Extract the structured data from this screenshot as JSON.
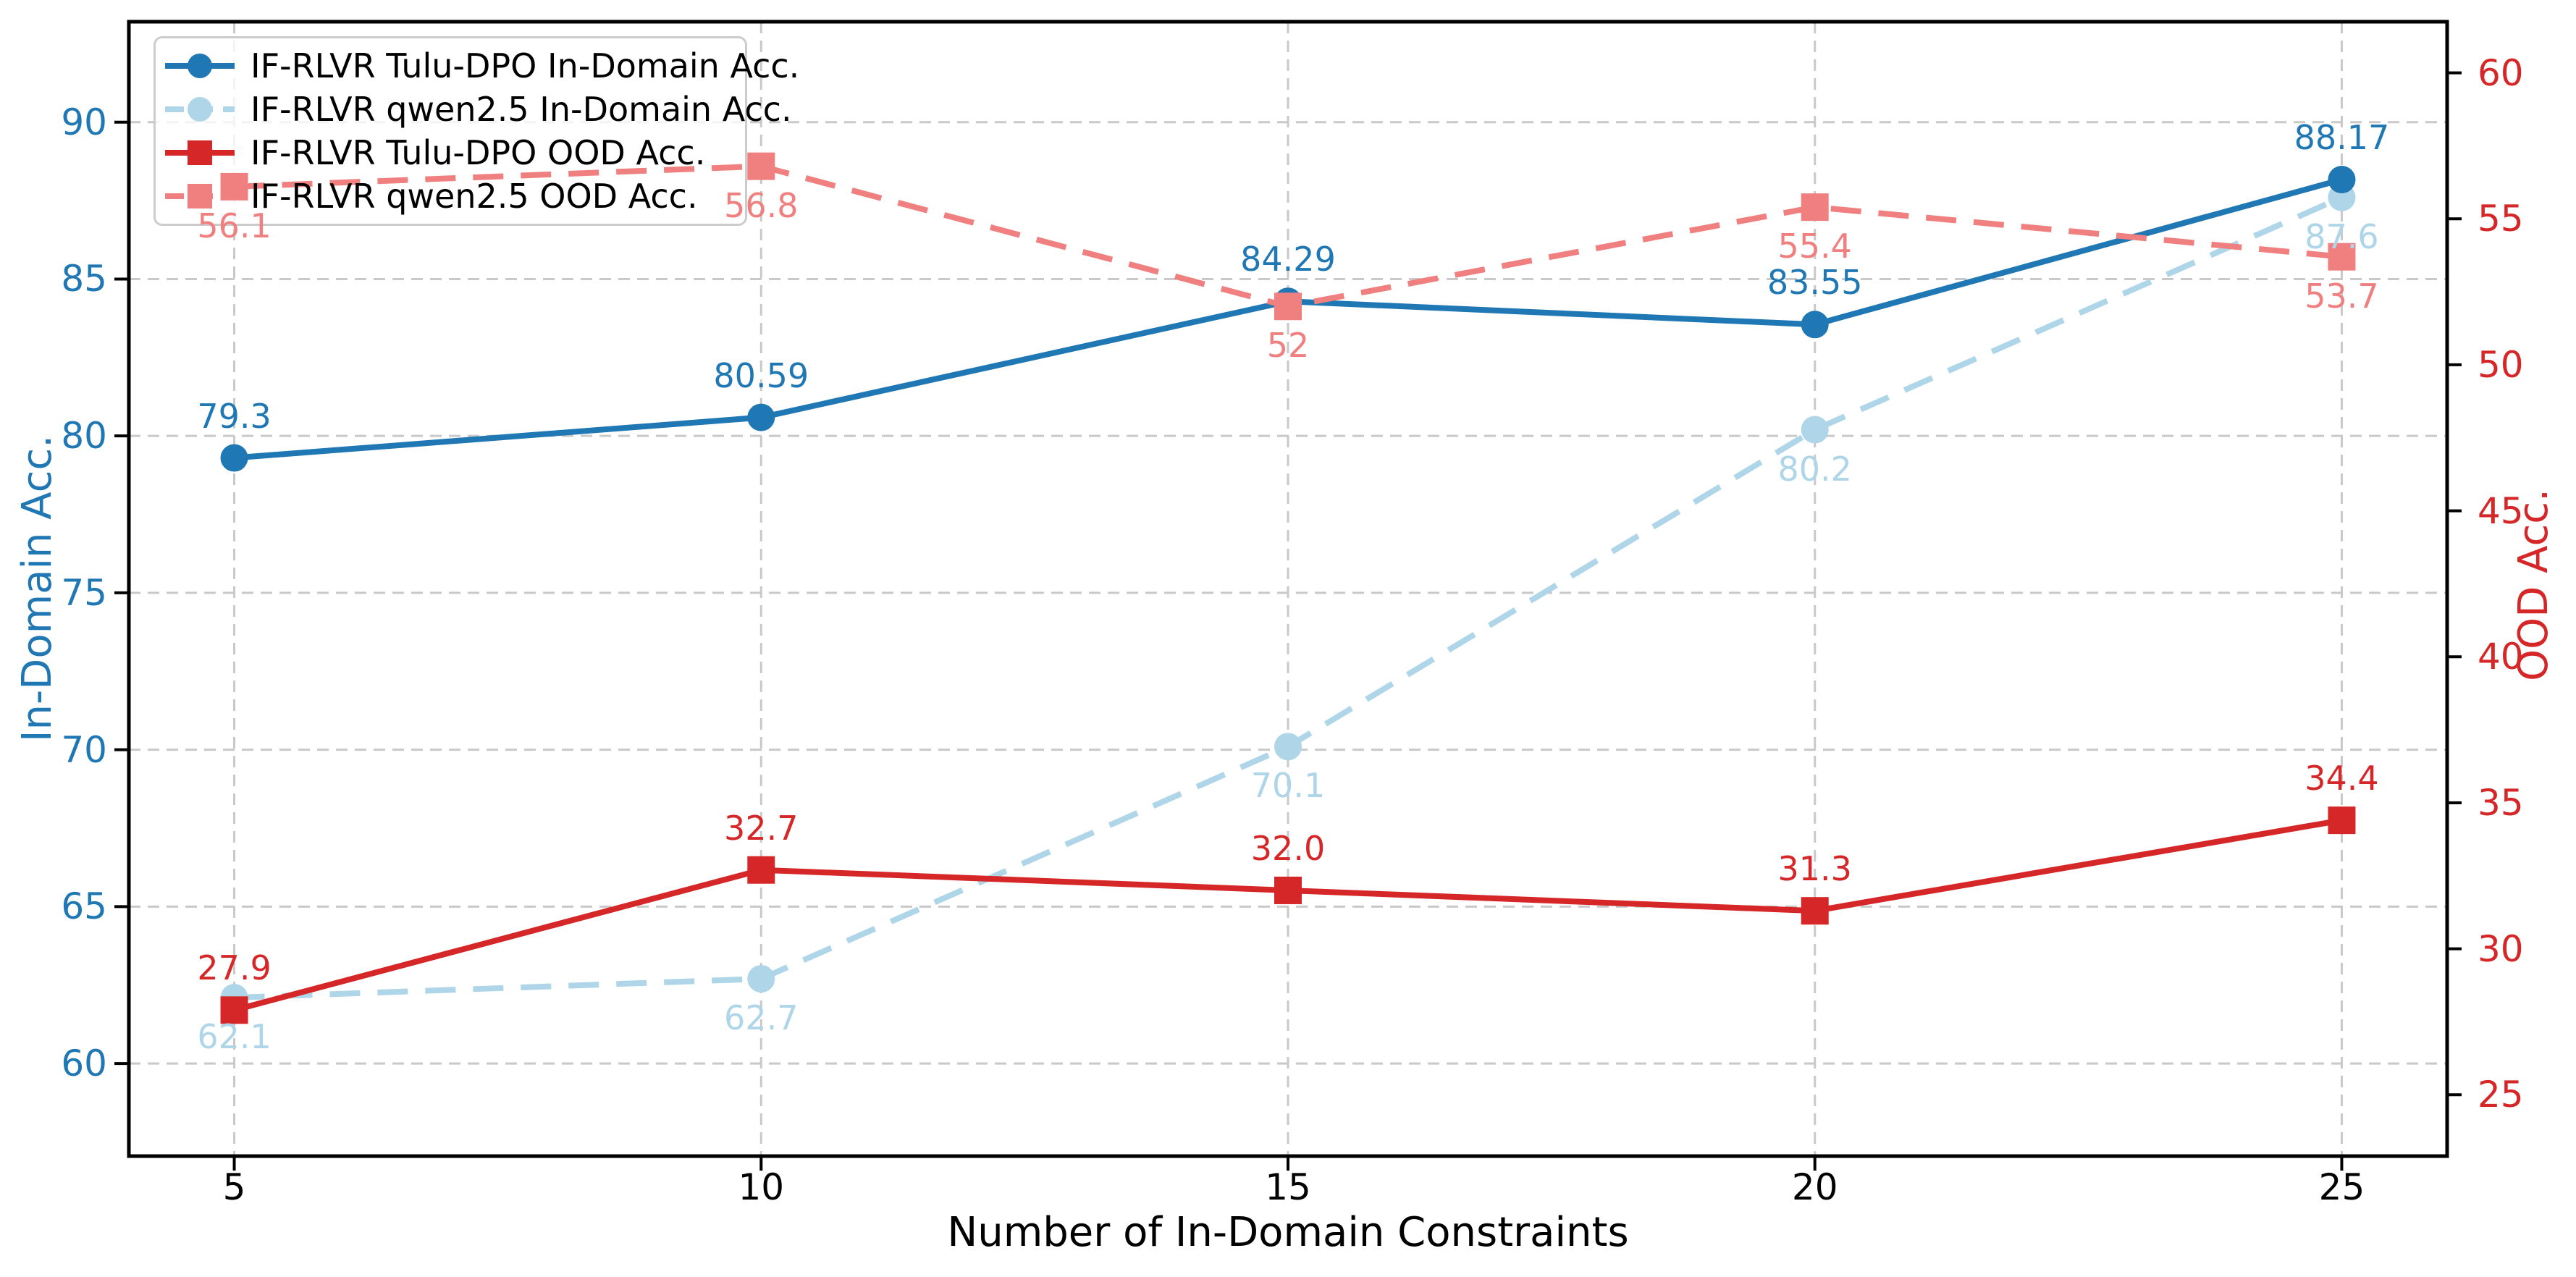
{
  "figure": {
    "background": "#ffffff"
  },
  "chart_data": {
    "type": "line",
    "title": "",
    "xlabel": "Number of In-Domain Constraints",
    "x": [
      5,
      10,
      15,
      20,
      25
    ],
    "x_ticks": [
      "5",
      "10",
      "15",
      "20",
      "25"
    ],
    "xlim": [
      4,
      26
    ],
    "grid": {
      "show": true,
      "color": "#c9c9c9",
      "dash": "16 10"
    },
    "axes": {
      "left": {
        "label": "In-Domain Acc.",
        "color": "#1f77b4",
        "ticks": [
          60,
          65,
          70,
          75,
          80,
          85,
          90
        ],
        "lim": [
          57.05,
          93.2
        ]
      },
      "right": {
        "label": "OOD Acc.",
        "color": "#d62728",
        "ticks": [
          25,
          30,
          35,
          40,
          45,
          50,
          55,
          60
        ],
        "lim": [
          22.9,
          61.75
        ]
      }
    },
    "series": [
      {
        "name": "IF-RLVR Tulu-DPO In-Domain Acc.",
        "axis": "left",
        "color": "#1f77b4",
        "marker": "circle",
        "line_style": "solid",
        "label_position": "above",
        "values": [
          79.3,
          80.59,
          84.29,
          83.55,
          88.17
        ],
        "labels": [
          "79.3",
          "80.59",
          "84.29",
          "83.55",
          "88.17"
        ]
      },
      {
        "name": "IF-RLVR qwen2.5 In-Domain Acc.",
        "axis": "left",
        "color": "#aed6e8",
        "marker": "circle",
        "line_style": "dashed",
        "label_position": "below",
        "values": [
          62.1,
          62.7,
          70.1,
          80.2,
          87.6
        ],
        "labels": [
          "62.1",
          "62.7",
          "70.1",
          "80.2",
          "87.6"
        ]
      },
      {
        "name": "IF-RLVR Tulu-DPO OOD Acc.",
        "axis": "right",
        "color": "#d62728",
        "marker": "square",
        "line_style": "solid",
        "label_position": "above",
        "values": [
          27.9,
          32.7,
          32.0,
          31.3,
          34.4
        ],
        "labels": [
          "27.9",
          "32.7",
          "32.0",
          "31.3",
          "34.4"
        ]
      },
      {
        "name": "IF-RLVR qwen2.5 OOD Acc.",
        "axis": "right",
        "color": "#f08080",
        "marker": "square",
        "line_style": "dashed",
        "label_position": "below",
        "values": [
          56.1,
          56.8,
          52,
          55.4,
          53.7
        ],
        "labels": [
          "56.1",
          "56.8",
          "52",
          "55.4",
          "53.7"
        ]
      }
    ],
    "draw_order": [
      1,
      0,
      2,
      3
    ],
    "legend": {
      "position": "upper left"
    }
  }
}
